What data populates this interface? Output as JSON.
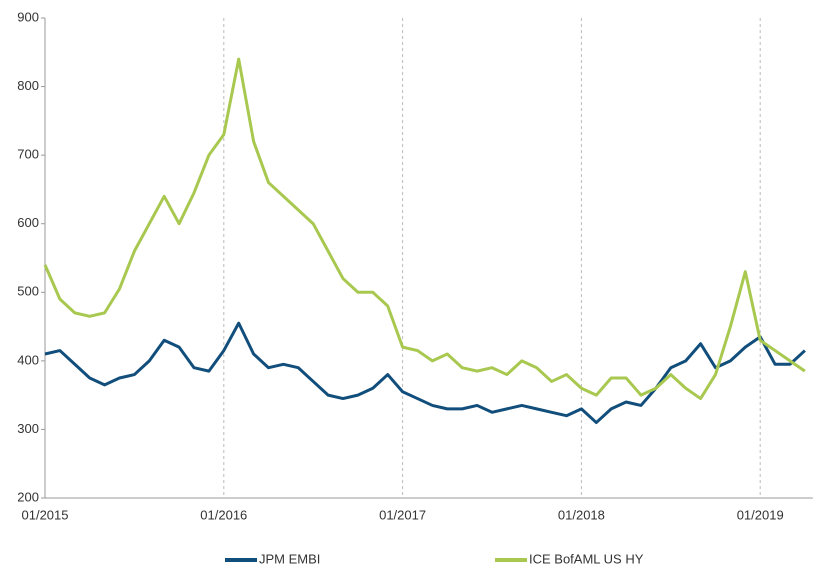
{
  "chart_data": {
    "type": "line",
    "x": [
      "01/2015",
      "02/2015",
      "03/2015",
      "04/2015",
      "05/2015",
      "06/2015",
      "07/2015",
      "08/2015",
      "09/2015",
      "10/2015",
      "11/2015",
      "12/2015",
      "01/2016",
      "02/2016",
      "03/2016",
      "04/2016",
      "05/2016",
      "06/2016",
      "07/2016",
      "08/2016",
      "09/2016",
      "10/2016",
      "11/2016",
      "12/2016",
      "01/2017",
      "02/2017",
      "03/2017",
      "04/2017",
      "05/2017",
      "06/2017",
      "07/2017",
      "08/2017",
      "09/2017",
      "10/2017",
      "11/2017",
      "12/2017",
      "01/2018",
      "02/2018",
      "03/2018",
      "04/2018",
      "05/2018",
      "06/2018",
      "07/2018",
      "08/2018",
      "09/2018",
      "10/2018",
      "11/2018",
      "12/2018",
      "01/2019",
      "02/2019",
      "03/2019",
      "04/2019"
    ],
    "xticks": [
      "01/2015",
      "01/2016",
      "01/2017",
      "01/2018",
      "01/2019"
    ],
    "ylim": [
      200,
      900
    ],
    "yticks": [
      200,
      300,
      400,
      500,
      600,
      700,
      800,
      900
    ],
    "grid": true,
    "legend": "bottom",
    "series": [
      {
        "name": "JPM EMBI",
        "color": "#124e7c",
        "values": [
          410,
          415,
          395,
          375,
          365,
          375,
          380,
          400,
          430,
          420,
          390,
          385,
          415,
          455,
          410,
          390,
          395,
          390,
          370,
          350,
          345,
          350,
          360,
          380,
          355,
          345,
          335,
          330,
          330,
          335,
          325,
          330,
          335,
          330,
          325,
          320,
          330,
          310,
          330,
          340,
          335,
          360,
          390,
          400,
          425,
          390,
          400,
          420,
          435,
          395,
          395,
          415
        ]
      },
      {
        "name": "ICE BofAML US HY",
        "color": "#a8c850",
        "values": [
          540,
          490,
          470,
          465,
          470,
          505,
          560,
          600,
          640,
          600,
          645,
          700,
          730,
          840,
          720,
          660,
          640,
          620,
          600,
          560,
          520,
          500,
          500,
          480,
          420,
          415,
          400,
          410,
          390,
          385,
          390,
          380,
          400,
          390,
          370,
          380,
          360,
          350,
          375,
          375,
          350,
          360,
          380,
          360,
          345,
          380,
          450,
          530,
          430,
          415,
          400,
          385
        ]
      }
    ]
  }
}
